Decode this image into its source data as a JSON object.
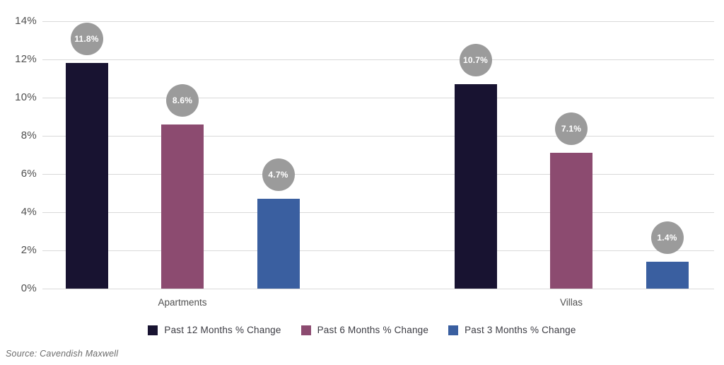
{
  "chart_data": {
    "type": "bar",
    "title": "",
    "xlabel": "",
    "ylabel": "",
    "categories": [
      "Apartments",
      "Villas"
    ],
    "series": [
      {
        "name": "Past 12 Months % Change",
        "color": "#181331",
        "values": [
          11.8,
          10.7
        ]
      },
      {
        "name": "Past 6 Months % Change",
        "color": "#8c4b70",
        "values": [
          8.6,
          7.1
        ]
      },
      {
        "name": "Past 3 Months % Change",
        "color": "#3a5fa0",
        "values": [
          4.7,
          1.4
        ]
      }
    ],
    "data_labels": [
      [
        "11.8%",
        "8.6%",
        "4.7%"
      ],
      [
        "10.7%",
        "7.1%",
        "1.4%"
      ]
    ],
    "ylim": [
      0,
      14
    ],
    "ytick_step": 2,
    "ytick_labels": [
      "0%",
      "2%",
      "4%",
      "6%",
      "8%",
      "10%",
      "12%",
      "14%"
    ],
    "grid": true,
    "legend_position": "bottom",
    "label_bubble_color": "#9b9b9b",
    "gridline_color": "#d9d9d9"
  },
  "footer": {
    "source": "Source: Cavendish Maxwell"
  }
}
